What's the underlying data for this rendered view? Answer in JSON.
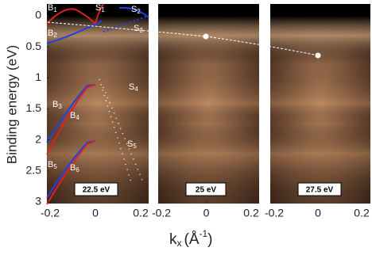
{
  "figure": {
    "y_axis_label": "Binding energy (eV)",
    "x_axis_label": {
      "base": "k",
      "sub": "x",
      "open": "(Å",
      "sup": "-1",
      "close": ")"
    },
    "yticks": [
      0,
      0.5,
      1,
      1.5,
      2,
      2.5,
      3
    ],
    "xticks": [
      -0.2,
      0,
      0.2
    ],
    "panels": [
      {
        "photon_energy": "22.5 eV"
      },
      {
        "photon_energy": "25  eV"
      },
      {
        "photon_energy": "27.5 eV"
      }
    ],
    "band_labels": [
      {
        "letter": "B",
        "sub": "1"
      },
      {
        "letter": "S",
        "sub": "1"
      },
      {
        "letter": "S",
        "sub": "2"
      },
      {
        "letter": "B",
        "sub": "2"
      },
      {
        "letter": "S",
        "sub": "3"
      },
      {
        "letter": "S",
        "sub": "4"
      },
      {
        "letter": "B",
        "sub": "3"
      },
      {
        "letter": "B",
        "sub": "4"
      },
      {
        "letter": "S",
        "sub": "5"
      },
      {
        "letter": "B",
        "sub": "5"
      },
      {
        "letter": "B",
        "sub": "6"
      }
    ]
  }
}
